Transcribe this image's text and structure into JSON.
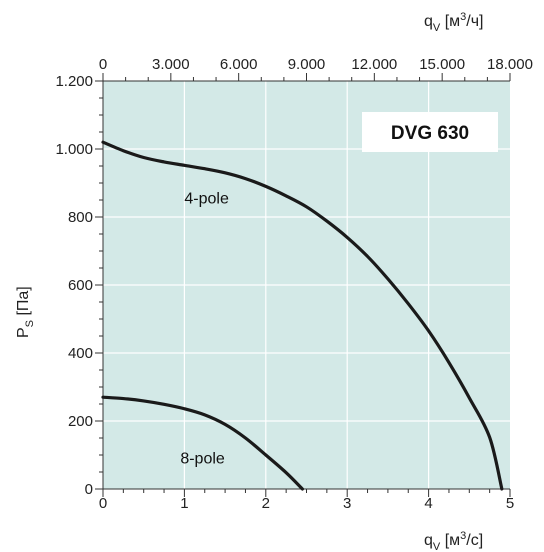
{
  "chart_data": {
    "type": "line",
    "title": "DVG 630",
    "colors": {
      "plot_bg": "#d3e9e7",
      "grid": "#ffffff",
      "curve": "#1a1a1a",
      "axis": "#333333"
    },
    "x_axis_bottom": {
      "label_main": "q",
      "label_sub": "V",
      "label_unit_open": " [м",
      "label_sup": "3",
      "label_unit_close": "/с]",
      "range": [
        0,
        5
      ],
      "ticks": [
        {
          "value": 0,
          "label": "0"
        },
        {
          "value": 1,
          "label": "1"
        },
        {
          "value": 2,
          "label": "2"
        },
        {
          "value": 3,
          "label": "3"
        },
        {
          "value": 4,
          "label": "4"
        },
        {
          "value": 5,
          "label": "5"
        }
      ]
    },
    "x_axis_top": {
      "label_main": "q",
      "label_sub": "V",
      "label_unit_open": " [м",
      "label_sup": "3",
      "label_unit_close": "/ч]",
      "range": [
        0,
        18000
      ],
      "ticks": [
        {
          "value": 0,
          "label": "0"
        },
        {
          "value": 3000,
          "label": "3.000"
        },
        {
          "value": 6000,
          "label": "6.000"
        },
        {
          "value": 9000,
          "label": "9.000"
        },
        {
          "value": 12000,
          "label": "12.000"
        },
        {
          "value": 15000,
          "label": "15.000"
        },
        {
          "value": 18000,
          "label": "18.000"
        }
      ]
    },
    "y_axis": {
      "label_main": "P",
      "label_sub": "S",
      "label_unit": " [Па]",
      "range": [
        0,
        1200
      ],
      "ticks": [
        {
          "value": 0,
          "label": "0"
        },
        {
          "value": 200,
          "label": "200"
        },
        {
          "value": 400,
          "label": "400"
        },
        {
          "value": 600,
          "label": "600"
        },
        {
          "value": 800,
          "label": "800"
        },
        {
          "value": 1000,
          "label": "1.000"
        },
        {
          "value": 1200,
          "label": "1.200"
        }
      ]
    },
    "grid": true,
    "series": [
      {
        "name": "4-pole",
        "label_pos": {
          "x": 1.0,
          "y": 840
        },
        "x": [
          0,
          0.25,
          0.5,
          0.75,
          1.0,
          1.25,
          1.5,
          1.75,
          2.0,
          2.25,
          2.5,
          2.75,
          3.0,
          3.25,
          3.5,
          3.75,
          4.0,
          4.25,
          4.5,
          4.75,
          4.9
        ],
        "y": [
          1020,
          995,
          975,
          962,
          952,
          942,
          930,
          913,
          890,
          862,
          830,
          788,
          740,
          684,
          618,
          545,
          465,
          372,
          268,
          152,
          0
        ]
      },
      {
        "name": "8-pole",
        "label_pos": {
          "x": 0.95,
          "y": 75
        },
        "x": [
          0,
          0.25,
          0.5,
          0.75,
          1.0,
          1.25,
          1.5,
          1.75,
          2.0,
          2.25,
          2.45
        ],
        "y": [
          270,
          266,
          259,
          249,
          236,
          218,
          190,
          150,
          100,
          48,
          0
        ]
      }
    ]
  }
}
